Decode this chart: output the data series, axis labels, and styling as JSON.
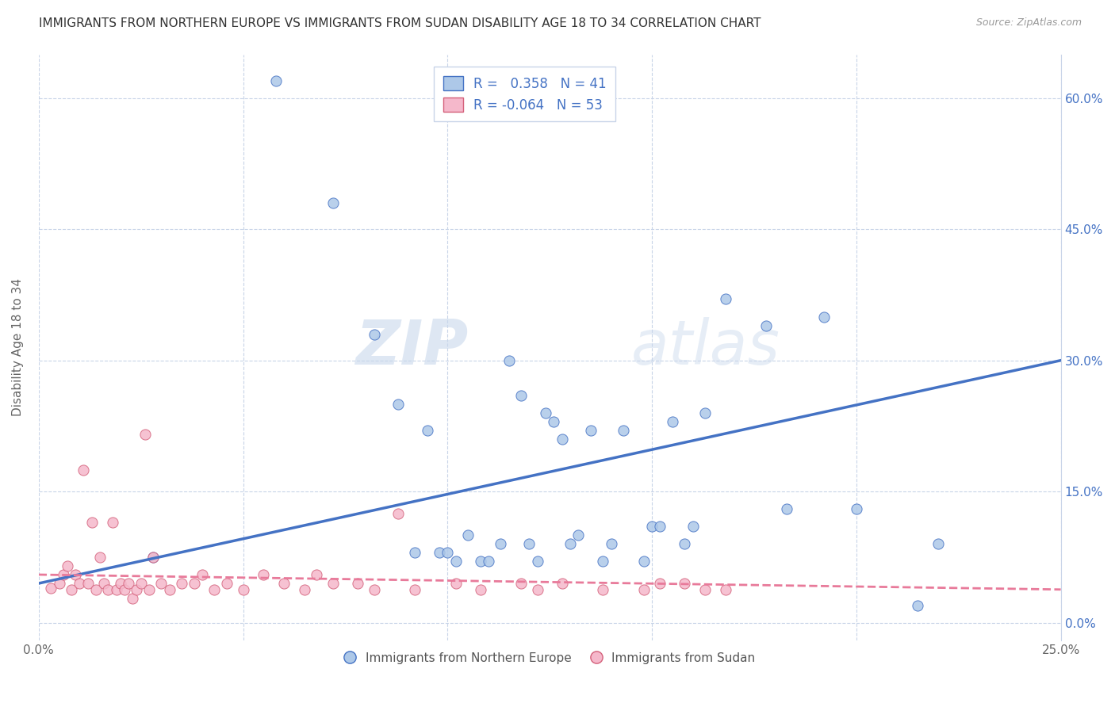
{
  "title": "IMMIGRANTS FROM NORTHERN EUROPE VS IMMIGRANTS FROM SUDAN DISABILITY AGE 18 TO 34 CORRELATION CHART",
  "source": "Source: ZipAtlas.com",
  "ylabel": "Disability Age 18 to 34",
  "xlim": [
    0.0,
    0.25
  ],
  "ylim": [
    -0.02,
    0.65
  ],
  "xticks": [
    0.0,
    0.05,
    0.1,
    0.15,
    0.2,
    0.25
  ],
  "xticklabels": [
    "0.0%",
    "",
    "",
    "",
    "",
    "25.0%"
  ],
  "yticks_right": [
    0.0,
    0.15,
    0.3,
    0.45,
    0.6
  ],
  "ytick_right_labels": [
    "0.0%",
    "15.0%",
    "30.0%",
    "45.0%",
    "60.0%"
  ],
  "r_blue": 0.358,
  "n_blue": 41,
  "r_pink": -0.064,
  "n_pink": 53,
  "blue_color": "#adc8e8",
  "pink_color": "#f5b8cb",
  "blue_line_color": "#4472c4",
  "pink_line_color": "#e87a9a",
  "watermark_zip": "ZIP",
  "watermark_atlas": "atlas",
  "legend_label_blue": "Immigrants from Northern Europe",
  "legend_label_pink": "Immigrants from Sudan",
  "blue_scatter_x": [
    0.028,
    0.058,
    0.072,
    0.082,
    0.088,
    0.092,
    0.095,
    0.098,
    0.1,
    0.102,
    0.105,
    0.108,
    0.11,
    0.113,
    0.115,
    0.118,
    0.12,
    0.122,
    0.124,
    0.126,
    0.128,
    0.13,
    0.132,
    0.135,
    0.138,
    0.14,
    0.143,
    0.148,
    0.15,
    0.152,
    0.155,
    0.158,
    0.16,
    0.163,
    0.168,
    0.178,
    0.183,
    0.192,
    0.2,
    0.215,
    0.22
  ],
  "blue_scatter_y": [
    0.075,
    0.62,
    0.48,
    0.33,
    0.25,
    0.08,
    0.22,
    0.08,
    0.08,
    0.07,
    0.1,
    0.07,
    0.07,
    0.09,
    0.3,
    0.26,
    0.09,
    0.07,
    0.24,
    0.23,
    0.21,
    0.09,
    0.1,
    0.22,
    0.07,
    0.09,
    0.22,
    0.07,
    0.11,
    0.11,
    0.23,
    0.09,
    0.11,
    0.24,
    0.37,
    0.34,
    0.13,
    0.35,
    0.13,
    0.02,
    0.09
  ],
  "pink_scatter_x": [
    0.003,
    0.005,
    0.006,
    0.007,
    0.008,
    0.009,
    0.01,
    0.011,
    0.012,
    0.013,
    0.014,
    0.015,
    0.016,
    0.017,
    0.018,
    0.019,
    0.02,
    0.021,
    0.022,
    0.023,
    0.024,
    0.025,
    0.026,
    0.027,
    0.028,
    0.03,
    0.032,
    0.035,
    0.038,
    0.04,
    0.043,
    0.046,
    0.05,
    0.055,
    0.06,
    0.065,
    0.068,
    0.072,
    0.078,
    0.082,
    0.088,
    0.092,
    0.102,
    0.108,
    0.118,
    0.122,
    0.128,
    0.138,
    0.148,
    0.152,
    0.158,
    0.163,
    0.168
  ],
  "pink_scatter_y": [
    0.04,
    0.045,
    0.055,
    0.065,
    0.038,
    0.055,
    0.045,
    0.175,
    0.045,
    0.115,
    0.038,
    0.075,
    0.045,
    0.038,
    0.115,
    0.038,
    0.045,
    0.038,
    0.045,
    0.028,
    0.038,
    0.045,
    0.215,
    0.038,
    0.075,
    0.045,
    0.038,
    0.045,
    0.045,
    0.055,
    0.038,
    0.045,
    0.038,
    0.055,
    0.045,
    0.038,
    0.055,
    0.045,
    0.045,
    0.038,
    0.125,
    0.038,
    0.045,
    0.038,
    0.045,
    0.038,
    0.045,
    0.038,
    0.038,
    0.045,
    0.045,
    0.038,
    0.038
  ],
  "grid_color": "#c8d4e8",
  "background_color": "#ffffff",
  "blue_regression_x0": 0.0,
  "blue_regression_y0": 0.045,
  "blue_regression_x1": 0.25,
  "blue_regression_y1": 0.3,
  "pink_regression_x0": 0.0,
  "pink_regression_y0": 0.055,
  "pink_regression_x1": 0.25,
  "pink_regression_y1": 0.038
}
